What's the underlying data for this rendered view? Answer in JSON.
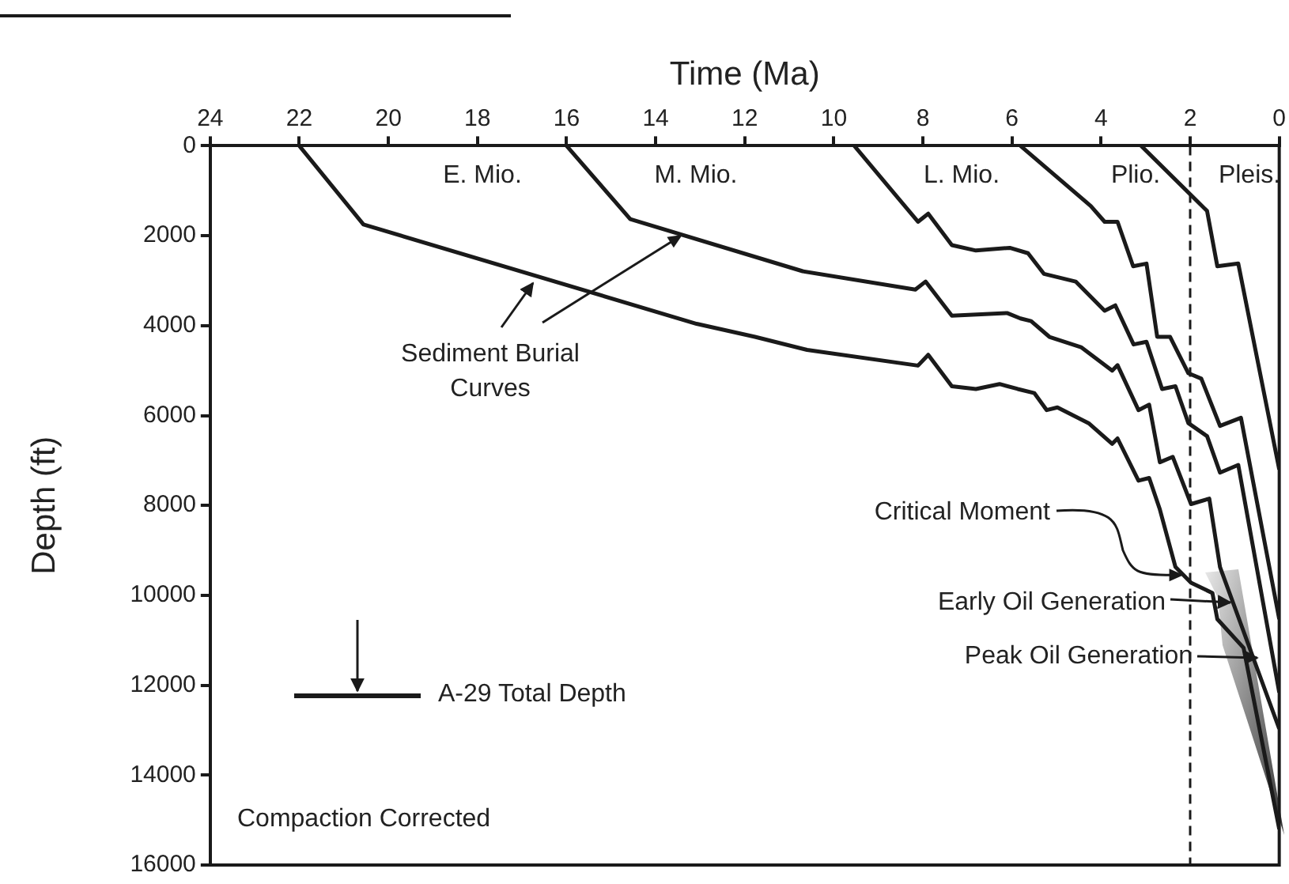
{
  "chart_data": {
    "type": "line",
    "xlabel": "Time (Ma)",
    "ylabel": "Depth (ft)",
    "xlim": [
      24,
      0
    ],
    "xticks": [
      24,
      22,
      20,
      18,
      16,
      14,
      12,
      10,
      8,
      6,
      4,
      2,
      0
    ],
    "ylim": [
      16000,
      0
    ],
    "yticks": [
      0,
      2000,
      4000,
      6000,
      8000,
      10000,
      12000,
      14000,
      16000
    ],
    "grid": false,
    "legend": false,
    "marker": "none",
    "line_style": "solid",
    "series": [
      {
        "color": "#1a1a1a",
        "x": [
          22,
          20.56,
          13.08,
          11.77,
          10.6,
          8.11,
          7.88,
          7.35,
          6.81,
          6.28,
          5.87,
          5.5,
          5.22,
          4.98,
          4.28,
          3.75,
          3.63,
          3.16,
          2.92,
          2.68,
          2.33,
          1.98,
          1.5,
          1.39,
          0.8,
          0
        ],
        "values": [
          0,
          1750,
          3960,
          4250,
          4540,
          4890,
          4650,
          5350,
          5410,
          5300,
          5410,
          5500,
          5880,
          5820,
          6170,
          6630,
          6510,
          7450,
          7390,
          8090,
          9370,
          9720,
          9950,
          10530,
          11170,
          15200
        ]
      },
      {
        "color": "#1a1a1a",
        "x": [
          16,
          14.57,
          10.7,
          8.17,
          7.94,
          7.35,
          6.11,
          5.81,
          5.57,
          5.16,
          4.45,
          3.75,
          3.63,
          3.16,
          2.92,
          2.68,
          2.39,
          1.98,
          1.57,
          1.33,
          0
        ],
        "values": [
          0,
          1630,
          2790,
          3200,
          3020,
          3780,
          3720,
          3840,
          3900,
          4250,
          4480,
          5000,
          4880,
          5880,
          5760,
          7040,
          6920,
          7970,
          7850,
          9370,
          12970
        ]
      },
      {
        "color": "#1a1a1a",
        "x": [
          9.54,
          8.11,
          7.88,
          7.35,
          6.81,
          6.05,
          5.64,
          5.28,
          4.57,
          3.92,
          3.68,
          3.27,
          2.98,
          2.63,
          2.33,
          2.04,
          1.62,
          1.33,
          0.92,
          0
        ],
        "values": [
          0,
          1690,
          1510,
          2210,
          2330,
          2270,
          2390,
          2850,
          3020,
          3670,
          3550,
          4420,
          4360,
          5410,
          5350,
          6170,
          6460,
          7270,
          7100,
          12160
        ]
      },
      {
        "color": "#1a1a1a",
        "x": [
          5.81,
          4.23,
          3.92,
          3.63,
          3.28,
          2.98,
          2.74,
          2.45,
          2.04,
          1.75,
          1.33,
          0.86,
          0
        ],
        "values": [
          0,
          1340,
          1690,
          1690,
          2680,
          2620,
          4250,
          4250,
          5060,
          5180,
          6230,
          6050,
          10530
        ]
      },
      {
        "color": "#1a1a1a",
        "x": [
          3.1,
          1.62,
          1.39,
          0.92,
          0
        ],
        "values": [
          0,
          1450,
          2680,
          2620,
          7200
        ]
      }
    ],
    "ref_lines": [
      {
        "axis": "x",
        "value": 2,
        "line_style": "dashed",
        "color": "#1a1a1a"
      }
    ],
    "annotations": [
      "E. Mio.",
      "M. Mio.",
      "L. Mio.",
      "Plio.",
      "Pleis.",
      {
        "text": "Sediment Burial Curves",
        "x": 13.4,
        "y": 1980
      },
      {
        "text": "Critical Moment",
        "x": 2.15,
        "y": 9550
      },
      "Early Oil Generation",
      "Peak Oil Generation",
      "A-29 Total Depth",
      "Compaction Corrected"
    ]
  }
}
